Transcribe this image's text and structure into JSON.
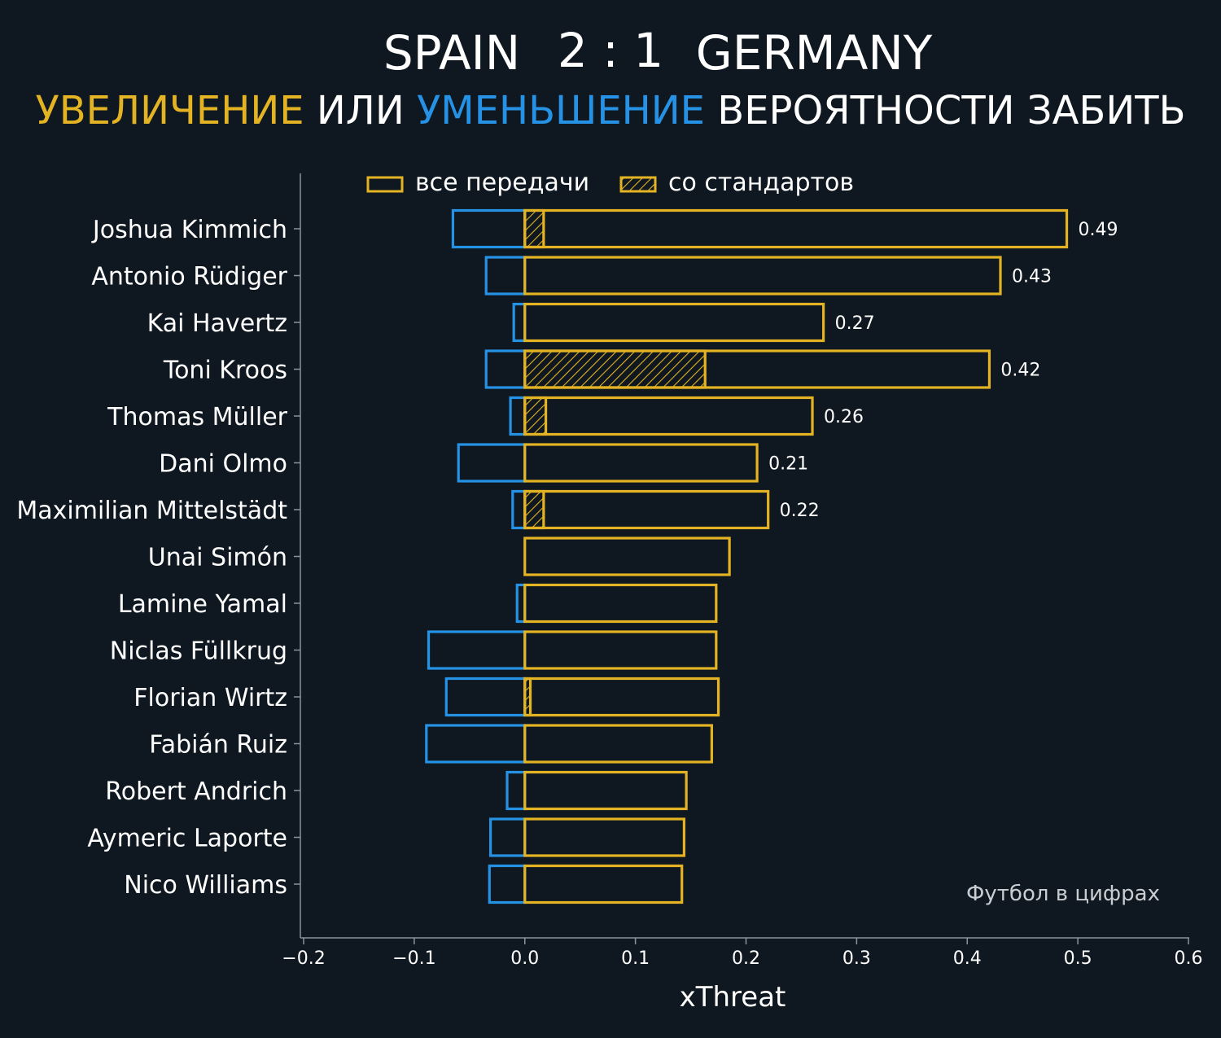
{
  "colors": {
    "background": "#0f1820",
    "positive": "#e3b323",
    "negative": "#2592e6",
    "text": "#ffffff",
    "axis": "#8a939c"
  },
  "header": {
    "team_home": "SPAIN",
    "score": "2 : 1",
    "team_away": "GERMANY",
    "sub_word_increase": "УВЕЛИЧЕНИЕ",
    "sub_word_or": "ИЛИ",
    "sub_word_decrease": "УМЕНЬШЕНИЕ",
    "sub_rest": "ВЕРОЯТНОСТИ ЗАБИТЬ"
  },
  "legend": {
    "all_passes": "все передачи",
    "set_pieces": "со стандартов"
  },
  "credit": "Футбол в цифрах",
  "chart_data": {
    "type": "bar",
    "orientation": "horizontal",
    "xlabel": "xThreat",
    "xlim": [
      -0.2,
      0.6
    ],
    "xticks": [
      -0.2,
      -0.1,
      0.0,
      0.1,
      0.2,
      0.3,
      0.4,
      0.5,
      0.6
    ],
    "xtick_labels": [
      "−0.2",
      "−0.1",
      "0.0",
      "0.1",
      "0.2",
      "0.3",
      "0.4",
      "0.5",
      "0.6"
    ],
    "categories": [
      "Joshua Kimmich",
      "Antonio Rüdiger",
      "Kai Havertz",
      "Toni Kroos",
      "Thomas Müller",
      "Dani Olmo",
      "Maximilian Mittelstädt",
      "Unai Simón",
      "Lamine Yamal",
      "Niclas Füllkrug",
      "Florian Wirtz",
      "Fabián Ruiz",
      "Robert Andrich",
      "Aymeric Laporte",
      "Nico Williams"
    ],
    "series": [
      {
        "name": "все передачи (увеличение)",
        "values": [
          0.49,
          0.43,
          0.27,
          0.42,
          0.26,
          0.21,
          0.22,
          0.185,
          0.173,
          0.173,
          0.175,
          0.169,
          0.146,
          0.144,
          0.142
        ]
      },
      {
        "name": "все передачи (уменьшение)",
        "values": [
          -0.065,
          -0.035,
          -0.01,
          -0.035,
          -0.013,
          -0.06,
          -0.011,
          0.0,
          -0.007,
          -0.087,
          -0.071,
          -0.089,
          -0.016,
          -0.031,
          -0.032
        ]
      },
      {
        "name": "со стандартов",
        "values": [
          0.017,
          0,
          0,
          0.163,
          0.019,
          0,
          0.017,
          0,
          0,
          0,
          0.005,
          0,
          0,
          0,
          0
        ]
      }
    ],
    "data_labels": [
      "0.49",
      "0.43",
      "0.27",
      "0.42",
      "0.26",
      "0.21",
      "0.22",
      "",
      "",
      "",
      "",
      "",
      "",
      "",
      ""
    ]
  }
}
